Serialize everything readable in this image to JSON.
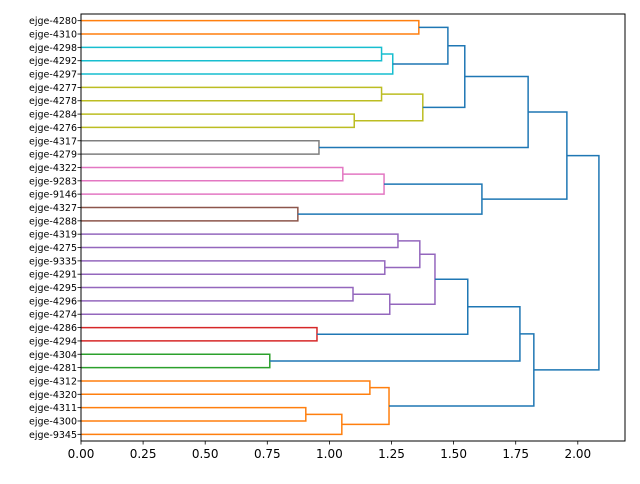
{
  "chart_data": {
    "type": "dendrogram",
    "orientation": "right",
    "title": "",
    "xlabel": "",
    "ylabel": "",
    "xlim": [
      0,
      2.19
    ],
    "xticks": [
      0.0,
      0.25,
      0.5,
      0.75,
      1.0,
      1.25,
      1.5,
      1.75,
      2.0
    ],
    "xtick_labels": [
      "0.00",
      "0.25",
      "0.50",
      "0.75",
      "1.00",
      "1.25",
      "1.50",
      "1.75",
      "2.00"
    ],
    "grid": false,
    "leaves": [
      "ejge-4280",
      "ejge-4310",
      "ejge-4298",
      "ejge-4292",
      "ejge-4297",
      "ejge-4277",
      "ejge-4278",
      "ejge-4284",
      "ejge-4276",
      "ejge-4317",
      "ejge-4279",
      "ejge-4322",
      "ejge-9283",
      "ejge-9146",
      "ejge-4327",
      "ejge-4288",
      "ejge-4319",
      "ejge-4275",
      "ejge-9335",
      "ejge-4291",
      "ejge-4295",
      "ejge-4296",
      "ejge-4274",
      "ejge-4286",
      "ejge-4294",
      "ejge-4304",
      "ejge-4281",
      "ejge-4312",
      "ejge-4320",
      "ejge-4311",
      "ejge-4300",
      "ejge-9345"
    ],
    "links": [
      {
        "a": 0,
        "b": 1,
        "h": 1.36,
        "color": "#ff7f0e"
      },
      {
        "a": 2,
        "b": 3,
        "h": 1.21,
        "color": "#17becf"
      },
      {
        "a": "L1",
        "b": 4,
        "h": 1.255,
        "color": "#17becf"
      },
      {
        "a": "L0",
        "b": "L2",
        "h": 1.477,
        "color": "#1f77b4"
      },
      {
        "a": 5,
        "b": 6,
        "h": 1.21,
        "color": "#bcbd22"
      },
      {
        "a": 7,
        "b": 8,
        "h": 1.1,
        "color": "#bcbd22"
      },
      {
        "a": "L4",
        "b": "L5",
        "h": 1.376,
        "color": "#bcbd22"
      },
      {
        "a": "L3",
        "b": "L6",
        "h": 1.545,
        "color": "#1f77b4"
      },
      {
        "a": 9,
        "b": 10,
        "h": 0.958,
        "color": "#7f7f7f"
      },
      {
        "a": "L7",
        "b": "L8",
        "h": 1.8,
        "color": "#1f77b4"
      },
      {
        "a": 11,
        "b": 12,
        "h": 1.054,
        "color": "#e377c2"
      },
      {
        "a": "L10",
        "b": 13,
        "h": 1.22,
        "color": "#e377c2"
      },
      {
        "a": 14,
        "b": 15,
        "h": 0.873,
        "color": "#8c564b"
      },
      {
        "a": "L11",
        "b": "L12",
        "h": 1.614,
        "color": "#1f77b4"
      },
      {
        "a": "L9",
        "b": "L13",
        "h": 1.956,
        "color": "#1f77b4"
      },
      {
        "a": 16,
        "b": 17,
        "h": 1.276,
        "color": "#9467bd"
      },
      {
        "a": 18,
        "b": 19,
        "h": 1.223,
        "color": "#9467bd"
      },
      {
        "a": "L15",
        "b": "L16",
        "h": 1.364,
        "color": "#9467bd"
      },
      {
        "a": 20,
        "b": 21,
        "h": 1.095,
        "color": "#9467bd"
      },
      {
        "a": "L18",
        "b": 22,
        "h": 1.243,
        "color": "#9467bd"
      },
      {
        "a": "L17",
        "b": "L19",
        "h": 1.425,
        "color": "#9467bd"
      },
      {
        "a": 23,
        "b": 24,
        "h": 0.95,
        "color": "#d62728"
      },
      {
        "a": "L20",
        "b": "L21",
        "h": 1.557,
        "color": "#1f77b4"
      },
      {
        "a": 25,
        "b": 26,
        "h": 0.76,
        "color": "#2ca02c"
      },
      {
        "a": "L22",
        "b": "L23",
        "h": 1.767,
        "color": "#1f77b4"
      },
      {
        "a": 27,
        "b": 28,
        "h": 1.163,
        "color": "#ff7f0e"
      },
      {
        "a": 29,
        "b": 30,
        "h": 0.905,
        "color": "#ff7f0e"
      },
      {
        "a": "L26",
        "b": 31,
        "h": 1.05,
        "color": "#ff7f0e"
      },
      {
        "a": "L25",
        "b": "L27",
        "h": 1.24,
        "color": "#ff7f0e"
      },
      {
        "a": "L24",
        "b": "L28",
        "h": 1.823,
        "color": "#1f77b4"
      },
      {
        "a": "L14",
        "b": "L29",
        "h": 2.085,
        "color": "#1f77b4"
      }
    ]
  }
}
